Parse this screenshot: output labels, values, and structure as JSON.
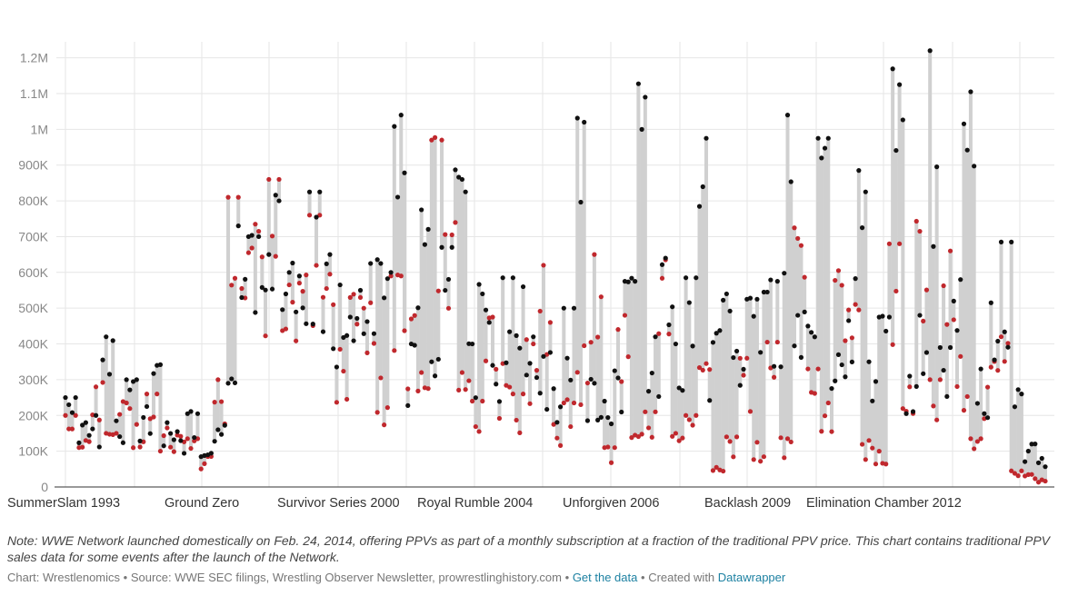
{
  "chart_data": {
    "type": "scatter",
    "subtype": "dot-range",
    "title": "",
    "xlabel": "",
    "ylabel": "",
    "ylim": [
      0,
      1260000
    ],
    "y_ticks": [
      0,
      100000,
      200000,
      300000,
      400000,
      500000,
      600000,
      700000,
      800000,
      900000,
      1000000,
      1100000,
      1200000
    ],
    "y_tick_labels": [
      "0",
      "100K",
      "200K",
      "300K",
      "400K",
      "500K",
      "600K",
      "700K",
      "800K",
      "900K",
      "1M",
      "1.1M",
      "1.2M"
    ],
    "x_tick_labels": [
      "SummerSlam 1993",
      "Ground Zero",
      "Survivor Series 2000",
      "Royal Rumble 2004",
      "Unforgiven 2006",
      "Backlash 2009",
      "Elimination Chamber 2012"
    ],
    "x_tick_positions": [
      0,
      41,
      83,
      124,
      166,
      208,
      249
    ],
    "event_count": 290,
    "series": [
      {
        "name": "Black dot",
        "color": "#111111",
        "values": [
          250000,
          180000,
          200000,
          420000,
          185000,
          300000,
          225000,
          340000,
          180000,
          155000,
          205000,
          90000,
          160000,
          290000,
          730000,
          700000,
          650000,
          800000,
          600000,
          590000,
          825000,
          650000,
          565000,
          475000,
          550000,
          625000,
          600000,
          1040000,
          400000,
          775000,
          350000,
          670000,
          860000,
          400000,
          540000,
          340000,
          585000,
          560000,
          420000,
          365000,
          275000,
          500000,
          1020000,
          290000,
          240000,
          325000,
          575000,
          1090000,
          420000,
          640000,
          400000,
          585000,
          975000,
          430000,
          540000,
          380000,
          525000,
          545000,
          575000,
          1040000,
          480000,
          450000,
          975000,
          370000,
          465000,
          885000,
          350000,
          475000,
          1125000,
          310000,
          480000,
          1220000,
          390000,
          580000,
          1105000,
          330000,
          515000,
          685000,
          260000,
          120000,
          80000
        ],
        "highlight_index": [
          0,
          1,
          2,
          3,
          4,
          5,
          6,
          7,
          8,
          9,
          10,
          11,
          12,
          13,
          14,
          15,
          16,
          17,
          18,
          19,
          20,
          21,
          22,
          23,
          24,
          25,
          26,
          27,
          28,
          29,
          30,
          31,
          32,
          33,
          34,
          35,
          36,
          37,
          38,
          39,
          40,
          41,
          42,
          43,
          44,
          45,
          46,
          47,
          48,
          49,
          50,
          51,
          52,
          53,
          54,
          55,
          56,
          57,
          58,
          59,
          60,
          61,
          62,
          63,
          64,
          65,
          66,
          67,
          68,
          69,
          70,
          71,
          72,
          73,
          74,
          75,
          76,
          77,
          78,
          79,
          80
        ]
      },
      {
        "name": "Red dot",
        "color": "#c0282d",
        "values": [
          200000,
          130000,
          280000,
          150000,
          235000,
          175000,
          260000,
          165000,
          145000,
          135000,
          85000,
          300000,
          810000,
          655000,
          715000,
          860000,
          565000,
          570000,
          760000,
          595000,
          385000,
          530000,
          515000,
          305000,
          590000,
          470000,
          320000,
          970000,
          705000,
          320000,
          240000,
          475000,
          345000,
          260000,
          400000,
          620000,
          175000,
          235000,
          395000,
          650000,
          110000,
          480000,
          145000,
          210000,
          635000,
          150000,
          200000,
          345000,
          55000,
          140000,
          360000,
          125000,
          405000,
          135000,
          695000,
          330000,
          235000,
          605000,
          495000,
          130000,
          100000,
          680000,
          280000,
          715000,
          300000,
          660000,
          365000,
          135000,
          335000,
          420000,
          45000,
          35000,
          20000
        ]
      }
    ]
  },
  "note": "Note: WWE Network launched domestically on Feb. 24, 2014, offering PPVs as part of a monthly subscription at a fraction of the traditional PPV price. This chart contains traditional PPV sales data for some events after the launch of the Network.",
  "footer": {
    "chart_credit": "Chart: Wrestlenomics",
    "source": "Source: WWE SEC filings, Wrestling Observer Newsletter, prowrestlinghistory.com",
    "get_data_label": "Get the data",
    "created_with": "Created with",
    "datawrapper_label": "Datawrapper",
    "separator": "•"
  },
  "colors": {
    "grid": "#e6e6e6",
    "range_bar": "#d0d0d0",
    "black_dot": "#111111",
    "red_dot": "#c0282d",
    "link": "#1d81a2"
  }
}
